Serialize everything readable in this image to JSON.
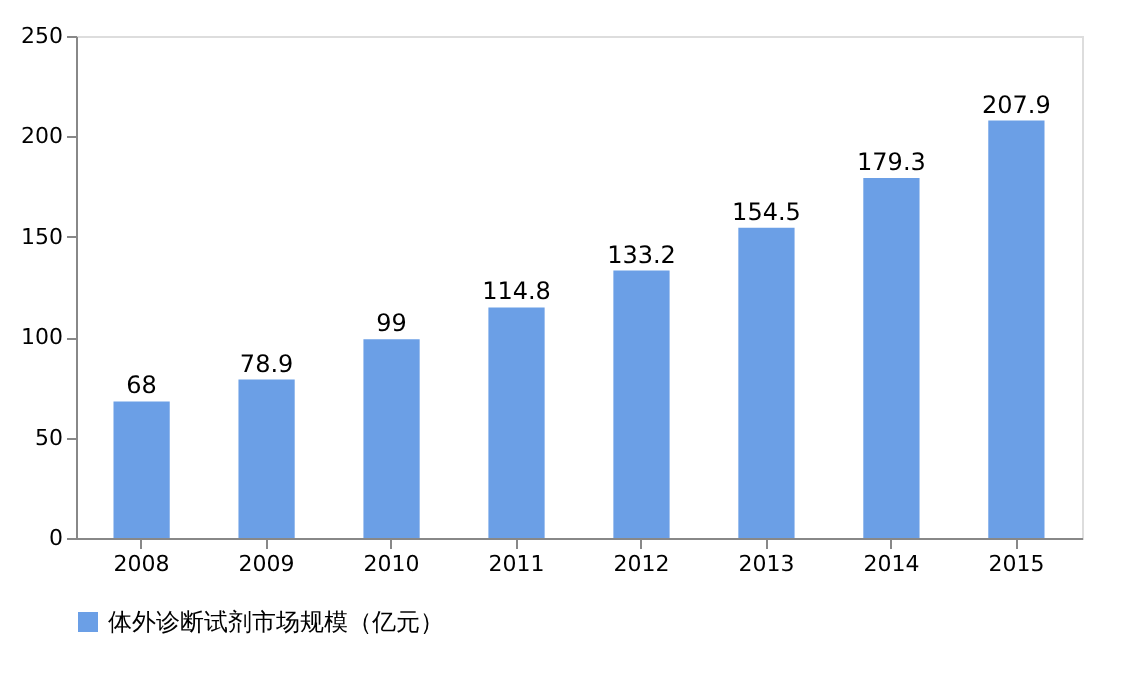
{
  "chart_data": {
    "type": "bar",
    "categories": [
      "2008",
      "2009",
      "2010",
      "2011",
      "2012",
      "2013",
      "2014",
      "2015"
    ],
    "series": [
      {
        "name": "体外诊断试剂市场规模（亿元）",
        "color": "#6b9fe6",
        "values": [
          68,
          78.9,
          99,
          114.8,
          133.2,
          154.5,
          179.3,
          207.9
        ]
      }
    ],
    "ylim": [
      0,
      250
    ],
    "yticks": [
      0,
      50,
      100,
      150,
      200,
      250
    ],
    "grid": false,
    "legend": "bottom",
    "data_labels": true
  }
}
